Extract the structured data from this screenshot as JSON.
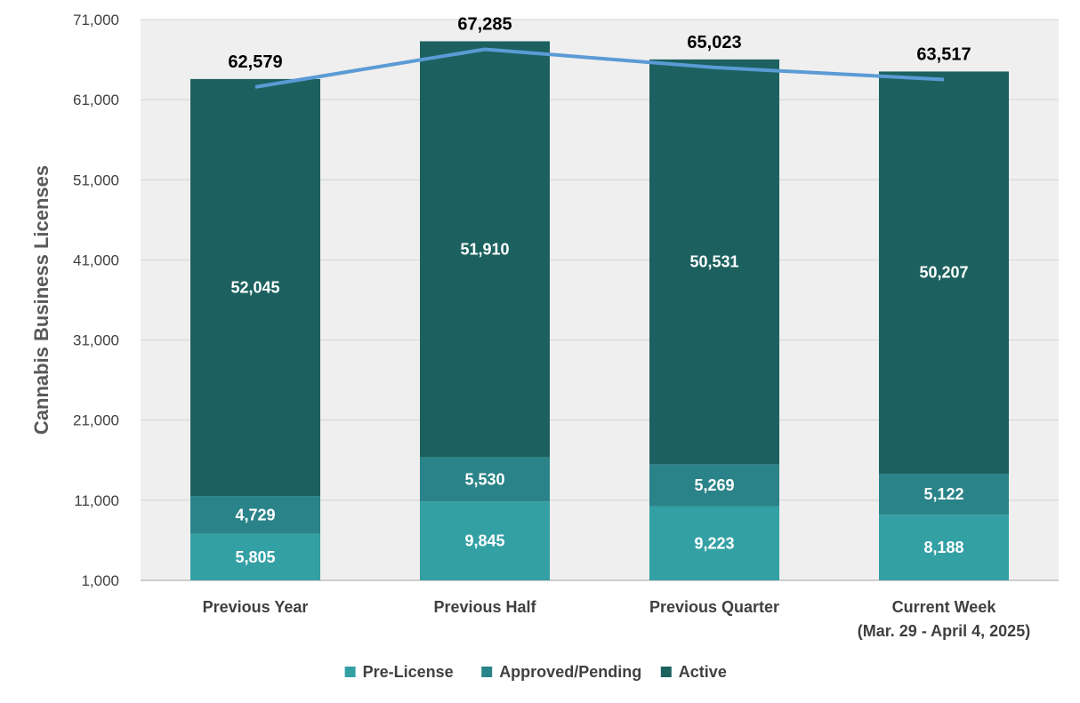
{
  "chart_data": {
    "type": "bar",
    "stacked": true,
    "categories": [
      [
        "Previous Year"
      ],
      [
        "Previous Half"
      ],
      [
        "Previous Quarter"
      ],
      [
        "Current Week",
        "(Mar. 29 - April 4, 2025)"
      ]
    ],
    "series": [
      {
        "name": "Pre-License",
        "values": [
          5805,
          9845,
          9223,
          8188
        ],
        "color": "#33a0a4"
      },
      {
        "name": "Approved/Pending",
        "values": [
          4729,
          5530,
          5269,
          5122
        ],
        "color": "#2a8388"
      },
      {
        "name": "Active",
        "values": [
          52045,
          51910,
          50531,
          50207
        ],
        "color": "#1c615f"
      }
    ],
    "totals": {
      "values": [
        62579,
        67285,
        65023,
        63517
      ],
      "line_color": "#5b9bd5",
      "chart_type": "line"
    },
    "title": "",
    "xlabel": "",
    "ylabel": "Cannabis  Business Licenses",
    "ylim": [
      1000,
      71000
    ],
    "yticks": [
      1000,
      11000,
      21000,
      31000,
      41000,
      51000,
      61000,
      71000
    ],
    "grid": true,
    "plot_background": "#efefef",
    "grid_color": "#d4d4d4",
    "legend_position": "bottom"
  }
}
